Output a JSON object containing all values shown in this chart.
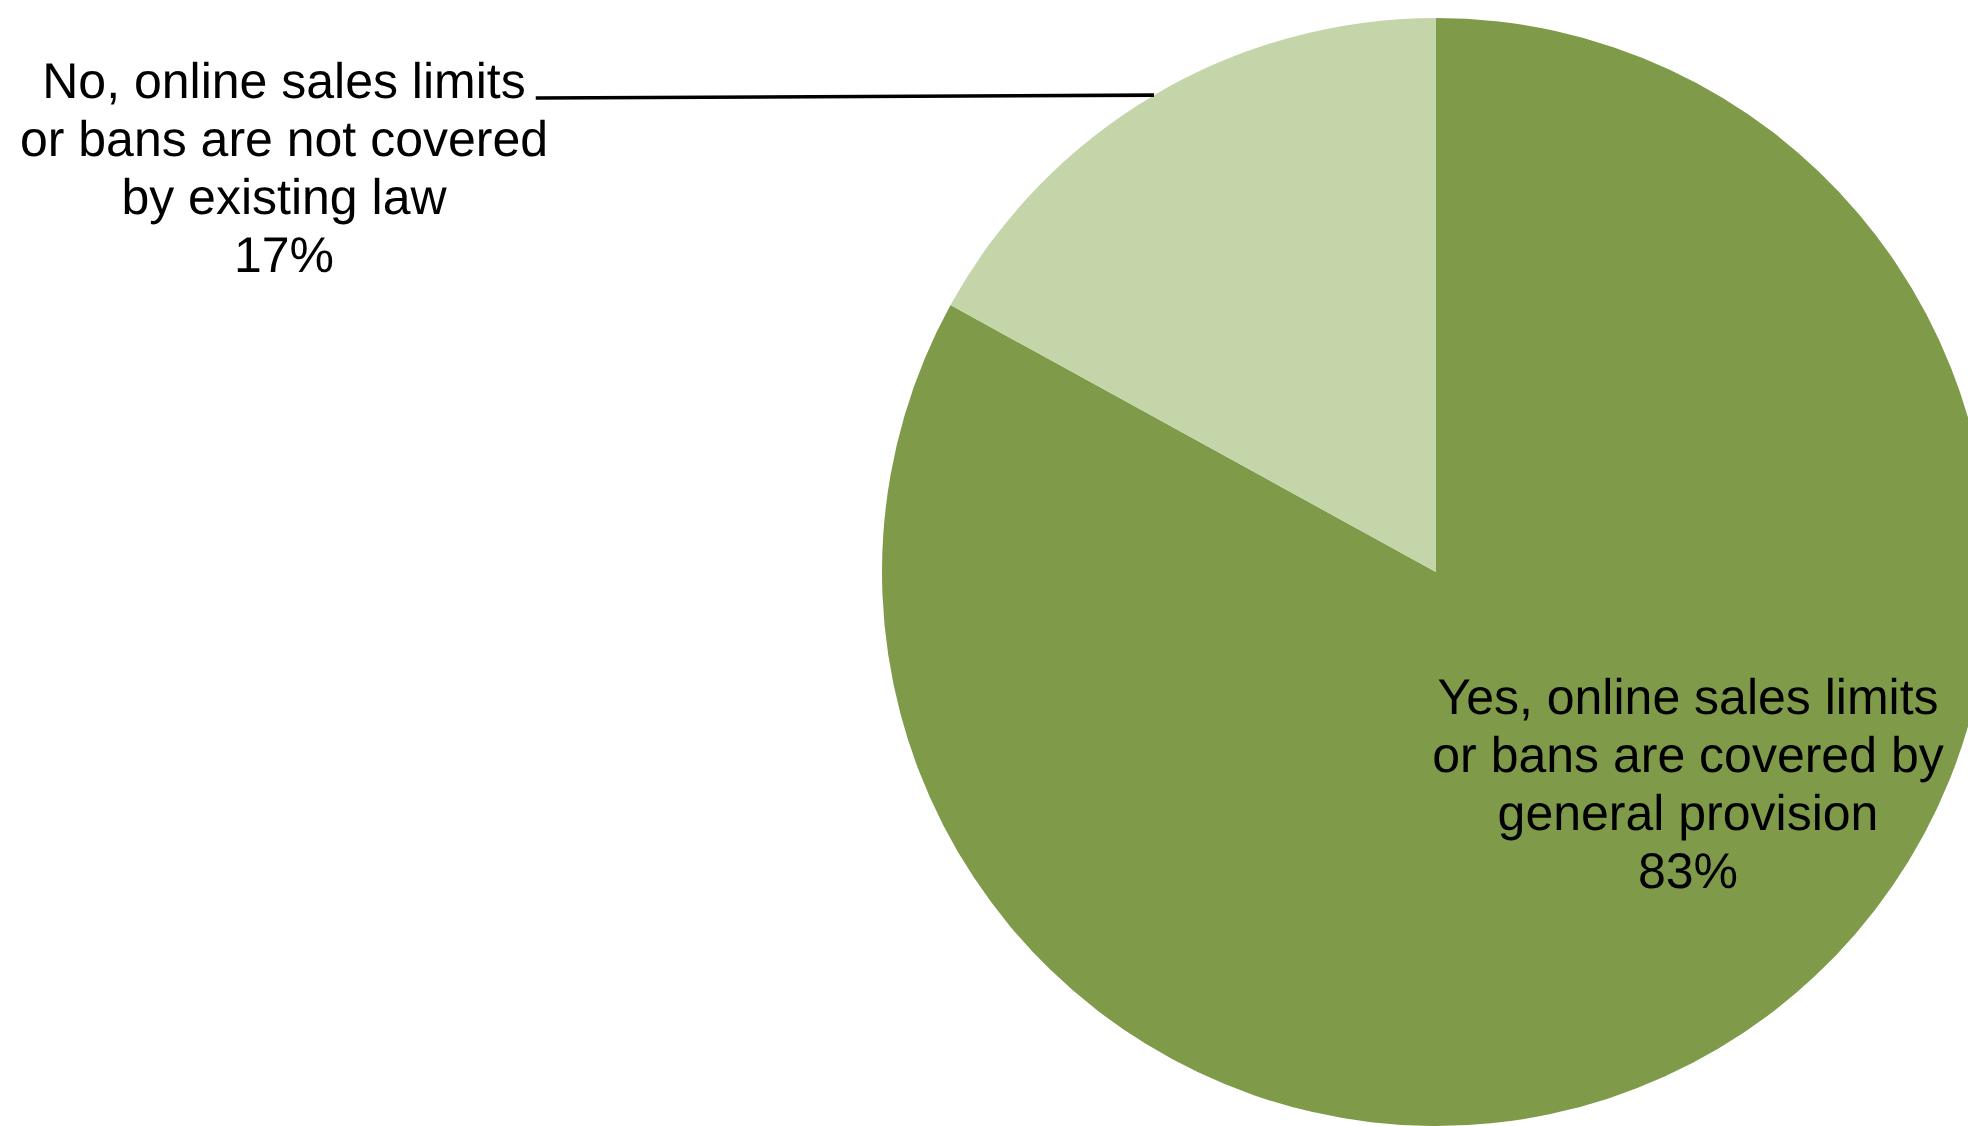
{
  "chart_data": {
    "type": "pie",
    "categories": [
      "Yes, online sales limits or bans are covered by general provision",
      "No, online sales limits or bans are not covered by existing law"
    ],
    "values": [
      83,
      17
    ],
    "colors": [
      "#7f9b4a",
      "#c4d5a9"
    ],
    "value_labels": [
      "83%",
      "17%"
    ]
  }
}
